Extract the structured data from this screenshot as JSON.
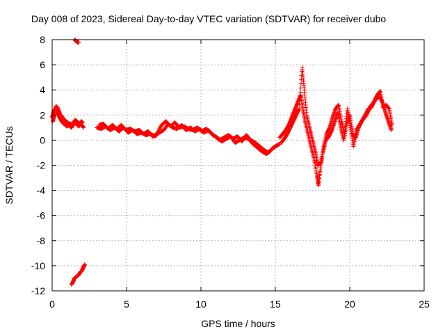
{
  "chart_data": {
    "type": "scatter",
    "title": "Day 008 of 2023, Sidereal Day-to-day VTEC variation (SDTVAR) for receiver dubo",
    "xlabel": "GPS time / hours",
    "ylabel": "SDTVAR / TECUs",
    "xlim": [
      0,
      25
    ],
    "ylim": [
      -12,
      8
    ],
    "x_ticks": [
      0,
      5,
      10,
      15,
      20,
      25
    ],
    "y_ticks": [
      -12,
      -10,
      -8,
      -6,
      -4,
      -2,
      0,
      2,
      4,
      6,
      8
    ],
    "grid": true,
    "marker": "+",
    "series": [
      {
        "name": "SDTVAR",
        "color": "#ff0000",
        "segments": [
          {
            "x": [
              0.0,
              0.1,
              0.2,
              0.3,
              0.4,
              0.5,
              0.6,
              0.7,
              0.8,
              0.9,
              1.0,
              1.1,
              1.2,
              1.3,
              1.4,
              1.5,
              1.6,
              1.7,
              1.8,
              1.9,
              2.0,
              2.1
            ],
            "y": [
              1.8,
              2.3,
              2.5,
              2.4,
              2.1,
              1.8,
              1.6,
              1.4,
              1.3,
              1.2,
              1.1,
              1.2,
              1.1,
              1.0,
              1.2,
              1.4,
              1.3,
              1.2,
              1.1,
              1.3,
              1.2,
              1.0
            ]
          },
          {
            "x": [
              0.05,
              0.15,
              0.25,
              0.35,
              0.45,
              0.55,
              0.65,
              0.75,
              0.85,
              0.95,
              1.05,
              1.15,
              1.25,
              1.35,
              1.45,
              1.55,
              1.65,
              1.75,
              1.85,
              1.95,
              2.05
            ],
            "y": [
              1.5,
              2.0,
              2.7,
              2.6,
              2.3,
              2.0,
              1.9,
              1.7,
              1.6,
              1.4,
              1.4,
              1.3,
              1.3,
              1.2,
              1.4,
              1.6,
              1.5,
              1.4,
              1.3,
              1.5,
              1.4
            ]
          },
          {
            "x": [
              3.0,
              3.3,
              3.6,
              3.9,
              4.2,
              4.5,
              4.8,
              5.1,
              5.4,
              5.7,
              6.0,
              6.3,
              6.6,
              6.9,
              7.2,
              7.5,
              7.8,
              8.1,
              8.4,
              8.7,
              9.0,
              9.3,
              9.6,
              9.9,
              10.2,
              10.5,
              10.8,
              11.1,
              11.4,
              11.7,
              12.0,
              12.3,
              12.6,
              12.9,
              13.2,
              13.5,
              13.8,
              14.1,
              14.4,
              14.7,
              15.0,
              15.3
            ],
            "y": [
              1.0,
              0.9,
              1.1,
              0.8,
              1.0,
              0.7,
              1.0,
              0.6,
              0.8,
              0.5,
              0.6,
              0.4,
              0.5,
              0.3,
              0.6,
              0.8,
              1.3,
              1.0,
              0.9,
              1.2,
              0.8,
              1.0,
              0.7,
              0.9,
              0.6,
              0.8,
              0.4,
              0.2,
              -0.1,
              0.1,
              0.3,
              -0.2,
              0.0,
              0.2,
              0.1,
              -0.3,
              -0.6,
              -0.9,
              -1.1,
              -0.8,
              -0.5,
              -0.3
            ]
          },
          {
            "x": [
              3.15,
              3.45,
              3.75,
              4.05,
              4.35,
              4.65,
              4.95,
              5.25,
              5.55,
              5.85,
              6.15,
              6.45,
              6.75,
              7.05,
              7.35,
              7.65,
              7.95,
              8.25,
              8.55,
              8.85,
              9.15,
              9.45,
              9.75,
              10.05,
              10.35,
              10.65,
              10.95,
              11.25,
              11.55,
              11.85,
              12.15,
              12.45,
              12.75,
              13.05,
              13.35,
              13.65,
              13.95,
              14.25,
              14.55,
              14.85,
              15.15
            ],
            "y": [
              1.2,
              1.3,
              0.9,
              1.2,
              0.9,
              1.2,
              0.8,
              0.9,
              0.7,
              0.8,
              0.5,
              0.7,
              0.3,
              0.5,
              1.2,
              1.5,
              1.1,
              1.4,
              1.0,
              1.1,
              0.9,
              0.8,
              1.0,
              0.7,
              0.9,
              0.6,
              0.3,
              0.0,
              0.2,
              0.4,
              0.1,
              0.3,
              -0.1,
              0.4,
              0.0,
              -0.2,
              -0.5,
              -0.8,
              -1.0,
              -0.6,
              -0.4
            ]
          },
          {
            "x": [
              15.3,
              15.5,
              15.7,
              15.9,
              16.1,
              16.3,
              16.5,
              16.7,
              16.85,
              17.0,
              17.2,
              17.4,
              17.6,
              17.8,
              17.9,
              18.0,
              18.2,
              18.4,
              18.6,
              18.8,
              19.0,
              19.2,
              19.4,
              19.6,
              19.8,
              20.0,
              20.2,
              20.4,
              20.6,
              20.8,
              21.0,
              21.2,
              21.4,
              21.6,
              21.8,
              22.0,
              22.2,
              22.4,
              22.6,
              22.8
            ],
            "y": [
              0.2,
              0.5,
              0.8,
              1.2,
              1.8,
              2.4,
              3.0,
              3.6,
              2.5,
              1.5,
              0.5,
              -0.5,
              -1.5,
              -2.8,
              -3.6,
              -2.5,
              -1.0,
              0.0,
              0.3,
              0.8,
              1.5,
              2.2,
              1.0,
              0.0,
              1.3,
              2.0,
              0.5,
              0.2,
              1.0,
              1.5,
              1.8,
              2.2,
              2.7,
              3.0,
              3.3,
              3.5,
              3.0,
              2.2,
              1.5,
              0.8
            ]
          },
          {
            "x": [
              15.4,
              15.6,
              15.8,
              16.0,
              16.2,
              16.4,
              16.6,
              16.8,
              16.95,
              17.1,
              17.3,
              17.5,
              17.7,
              17.85,
              18.05,
              18.25,
              18.45,
              18.65,
              18.85,
              19.05,
              19.25,
              19.45,
              19.65,
              19.85,
              20.05,
              20.25,
              20.45,
              20.65,
              20.85,
              21.05,
              21.25,
              21.45,
              21.65,
              21.85,
              22.05,
              22.25,
              22.45,
              22.65,
              22.85
            ],
            "y": [
              -0.2,
              0.1,
              0.5,
              1.0,
              1.5,
              2.0,
              2.5,
              5.8,
              4.0,
              2.0,
              1.0,
              0.0,
              -1.0,
              -2.0,
              -1.8,
              -0.5,
              0.5,
              1.0,
              1.8,
              2.5,
              2.8,
              1.5,
              0.5,
              2.5,
              1.0,
              -0.5,
              0.8,
              1.2,
              1.6,
              2.0,
              2.5,
              2.6,
              3.1,
              3.6,
              3.9,
              2.6,
              2.8,
              2.5,
              1.2
            ]
          },
          {
            "x": [
              1.5,
              1.6,
              1.7,
              1.8
            ],
            "y": [
              8.0,
              7.9,
              7.8,
              7.8
            ]
          },
          {
            "x": [
              1.3,
              1.4,
              1.5,
              1.6,
              1.7,
              1.8,
              1.9,
              2.0,
              2.1,
              2.2
            ],
            "y": [
              -11.5,
              -11.3,
              -11.0,
              -10.9,
              -10.8,
              -10.7,
              -10.5,
              -10.4,
              -10.1,
              -9.9
            ]
          }
        ]
      }
    ]
  }
}
